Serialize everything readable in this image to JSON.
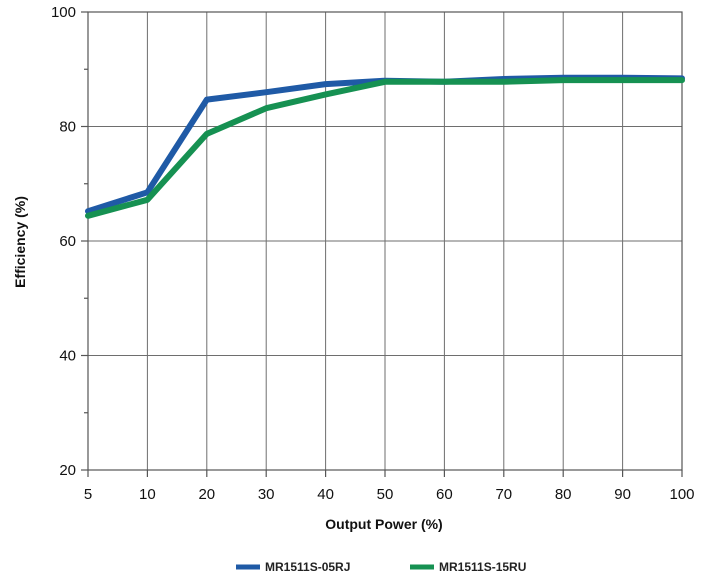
{
  "chart_data": {
    "type": "line",
    "title": "",
    "xlabel": "Output Power (%)",
    "ylabel": "Efficiency (%)",
    "x": [
      5,
      10,
      20,
      30,
      40,
      50,
      60,
      70,
      80,
      90,
      100
    ],
    "x_tick_labels": [
      "5",
      "10",
      "20",
      "30",
      "40",
      "50",
      "60",
      "70",
      "80",
      "90",
      "100"
    ],
    "y_ticks": [
      20,
      40,
      60,
      80,
      100
    ],
    "y_tick_labels": [
      "20",
      "40",
      "60",
      "80",
      "100"
    ],
    "ylim": [
      20,
      100
    ],
    "grid": true,
    "legend_position": "bottom",
    "series": [
      {
        "name": "MR1511S-05RJ",
        "color": "#1f5aa6",
        "values": [
          65.2,
          68.5,
          84.7,
          86.0,
          87.4,
          88.0,
          87.8,
          88.3,
          88.5,
          88.5,
          88.4
        ]
      },
      {
        "name": "MR1511S-15RU",
        "color": "#169152",
        "values": [
          64.4,
          67.2,
          78.7,
          83.2,
          85.6,
          87.8,
          87.8,
          87.8,
          88.1,
          88.1,
          88.1
        ]
      }
    ]
  }
}
